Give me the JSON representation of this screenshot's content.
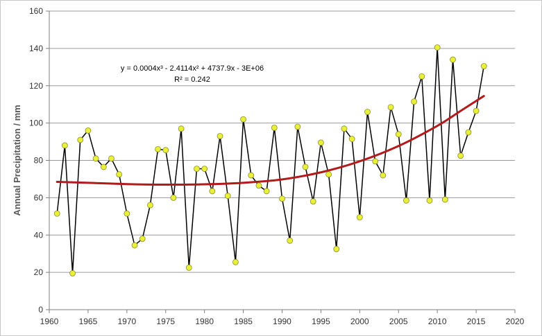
{
  "chart_data": {
    "type": "line",
    "xlabel": "",
    "ylabel": "Annual Precipitation / mm",
    "xlim": [
      1960,
      2020
    ],
    "ylim": [
      0,
      160
    ],
    "x_ticks": [
      1960,
      1965,
      1970,
      1975,
      1980,
      1985,
      1990,
      1995,
      2000,
      2005,
      2010,
      2015,
      2020
    ],
    "y_ticks": [
      0,
      20,
      40,
      60,
      80,
      100,
      120,
      140,
      160
    ],
    "grid": "horizontal",
    "series": [
      {
        "x": [
          1961,
          1962,
          1963,
          1964,
          1965,
          1966,
          1967,
          1968,
          1969,
          1970,
          1971,
          1972,
          1973,
          1974,
          1975,
          1976,
          1977,
          1978,
          1979,
          1980,
          1981,
          1982,
          1983,
          1984,
          1985,
          1986,
          1987,
          1988,
          1989,
          1990,
          1991,
          1992,
          1993,
          1994,
          1995,
          1996,
          1997,
          1998,
          1999,
          2000,
          2001,
          2002,
          2003,
          2004,
          2005,
          2006,
          2007,
          2008,
          2009,
          2010,
          2011,
          2012,
          2013,
          2014,
          2015,
          2016
        ],
        "values": [
          51.5,
          88,
          19.5,
          91,
          96,
          81,
          76.5,
          81,
          72.5,
          51.5,
          34.5,
          38,
          56,
          86,
          85.5,
          60,
          97,
          22.5,
          75.5,
          75.5,
          63.5,
          93,
          61,
          25.5,
          102,
          72,
          66.5,
          63.5,
          97.5,
          59.5,
          37,
          98,
          76.5,
          58,
          89.5,
          72.5,
          32.5,
          97,
          91.5,
          49.5,
          106,
          79.5,
          72,
          108.5,
          94,
          58.5,
          111.5,
          125,
          58.5,
          140.5,
          59,
          134,
          82.5,
          95,
          106.5,
          130.5
        ],
        "line_color": "#000000",
        "marker_color": "#e8f03a"
      }
    ],
    "trendline": {
      "type": "polynomial-3",
      "color": "#b21b1b",
      "equation_text": "y = 0.0004x³ - 2.4114x² + 4737.9x - 3E+06",
      "r2_text": "R² = 0.242",
      "x": [
        1961,
        1965,
        1970,
        1975,
        1980,
        1985,
        1990,
        1995,
        2000,
        2005,
        2010,
        2013,
        2016
      ],
      "values": [
        68.5,
        68,
        67.3,
        67,
        67.2,
        68,
        69.8,
        73.6,
        79.5,
        87.7,
        98.5,
        106.5,
        114.5
      ]
    }
  }
}
